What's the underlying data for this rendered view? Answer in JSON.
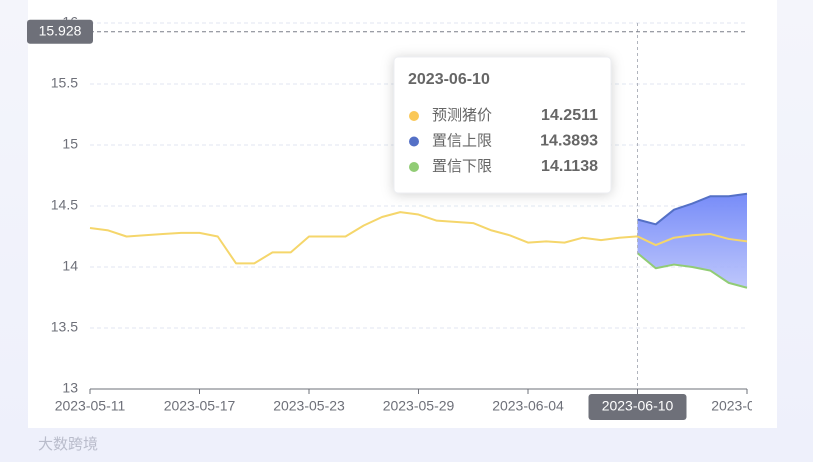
{
  "chart_data": {
    "type": "line",
    "x": [
      "2023-05-11",
      "2023-05-12",
      "2023-05-13",
      "2023-05-14",
      "2023-05-15",
      "2023-05-16",
      "2023-05-17",
      "2023-05-18",
      "2023-05-19",
      "2023-05-20",
      "2023-05-21",
      "2023-05-22",
      "2023-05-23",
      "2023-05-24",
      "2023-05-25",
      "2023-05-26",
      "2023-05-27",
      "2023-05-28",
      "2023-05-29",
      "2023-05-30",
      "2023-05-31",
      "2023-06-01",
      "2023-06-02",
      "2023-06-03",
      "2023-06-04",
      "2023-06-05",
      "2023-06-06",
      "2023-06-07",
      "2023-06-08",
      "2023-06-09",
      "2023-06-10",
      "2023-06-11",
      "2023-06-12",
      "2023-06-13",
      "2023-06-14",
      "2023-06-15",
      "2023-06-16"
    ],
    "x_label_interval": 6,
    "series": [
      {
        "name": "预测猪价",
        "color": "#f5d66b",
        "dot_color": "#fac858",
        "values": [
          14.32,
          14.3,
          14.25,
          14.26,
          14.27,
          14.28,
          14.28,
          14.25,
          14.03,
          14.03,
          14.12,
          14.12,
          14.25,
          14.25,
          14.25,
          14.34,
          14.41,
          14.45,
          14.43,
          14.38,
          14.37,
          14.36,
          14.3,
          14.26,
          14.2,
          14.21,
          14.2,
          14.24,
          14.22,
          14.24,
          14.2511,
          14.18,
          14.24,
          14.26,
          14.27,
          14.23,
          14.21
        ]
      },
      {
        "name": "置信上限",
        "color": "#5470c6",
        "dot_color": "#5470c6",
        "values": [
          null,
          null,
          null,
          null,
          null,
          null,
          null,
          null,
          null,
          null,
          null,
          null,
          null,
          null,
          null,
          null,
          null,
          null,
          null,
          null,
          null,
          null,
          null,
          null,
          null,
          null,
          null,
          null,
          null,
          null,
          14.3893,
          14.35,
          14.47,
          14.52,
          14.58,
          14.58,
          14.6
        ]
      },
      {
        "name": "置信下限",
        "color": "#91cc75",
        "dot_color": "#91cc75",
        "values": [
          null,
          null,
          null,
          null,
          null,
          null,
          null,
          null,
          null,
          null,
          null,
          null,
          null,
          null,
          null,
          null,
          null,
          null,
          null,
          null,
          null,
          null,
          null,
          null,
          null,
          null,
          null,
          null,
          null,
          null,
          14.1138,
          13.99,
          14.02,
          14.0,
          13.97,
          13.87,
          13.83
        ]
      }
    ],
    "band_color": "#7b8ff9",
    "ylim": [
      13,
      16
    ],
    "yticks": [
      13,
      13.5,
      14,
      14.5,
      15,
      15.5,
      16
    ],
    "grid": true,
    "pointer_y": 15.928,
    "pointer_index": 30,
    "watermark": "大数跨境"
  }
}
